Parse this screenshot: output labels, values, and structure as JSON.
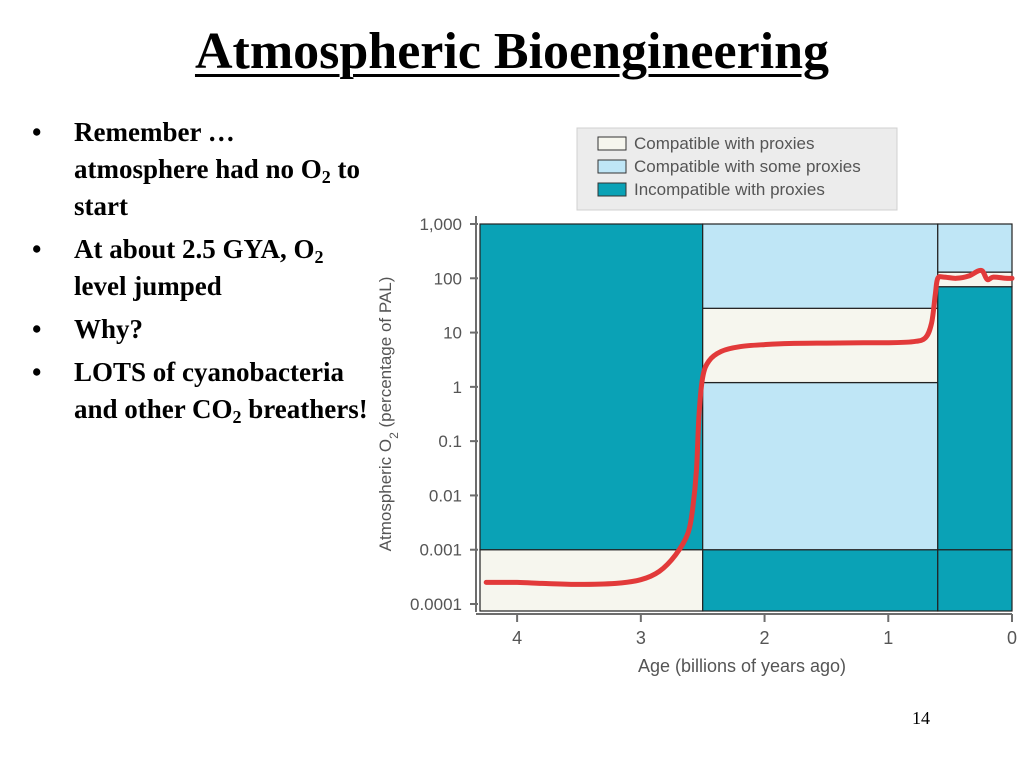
{
  "slide": {
    "title": "Atmospheric Bioengineering",
    "page_number": "14"
  },
  "bullets": [
    {
      "parts": [
        {
          "t": "Remember … atmosphere had no O"
        },
        {
          "t": "2",
          "sub": true
        },
        {
          "t": " to start"
        }
      ]
    },
    {
      "parts": [
        {
          "t": "At about 2.5 GYA, O"
        },
        {
          "t": "2",
          "sub": true
        },
        {
          "t": " level jumped"
        }
      ]
    },
    {
      "parts": [
        {
          "t": "Why?"
        }
      ]
    },
    {
      "parts": [
        {
          "t": "LOTS of cyanobacteria and other CO"
        },
        {
          "t": "2",
          "sub": true
        },
        {
          "t": " breathers!"
        }
      ]
    }
  ],
  "bullet_symbol": "•",
  "colors": {
    "compatible": "#f6f6ee",
    "some": "#bfe6f6",
    "incompatible": "#0aa2b6",
    "curve": "#e23a3a",
    "axis": "#6d6d6d",
    "border": "#222222"
  },
  "chart_data": {
    "type": "area",
    "xlabel": "Age (billions of years ago)",
    "ylabel": "Atmospheric O",
    "ylabel_sub": "2",
    "ylabel_suffix": " (percentage of PAL)",
    "x_reversed": true,
    "y_scale": "log",
    "xlim": [
      4.3,
      0
    ],
    "ylim": [
      0.0001,
      1000
    ],
    "x_ticks": [
      {
        "value": 4,
        "label": "4"
      },
      {
        "value": 3,
        "label": "3"
      },
      {
        "value": 2,
        "label": "2"
      },
      {
        "value": 1,
        "label": "1"
      },
      {
        "value": 0,
        "label": "0"
      }
    ],
    "y_ticks": [
      {
        "value": 1000,
        "label": "1,000"
      },
      {
        "value": 100,
        "label": "100"
      },
      {
        "value": 10,
        "label": "10"
      },
      {
        "value": 1,
        "label": "1"
      },
      {
        "value": 0.1,
        "label": "0.1"
      },
      {
        "value": 0.01,
        "label": "0.01"
      },
      {
        "value": 0.001,
        "label": "0.001"
      },
      {
        "value": 0.0001,
        "label": "0.0001"
      }
    ],
    "legend": [
      {
        "key": "compatible",
        "label": "Compatible with proxies"
      },
      {
        "key": "some",
        "label": "Compatible with some proxies"
      },
      {
        "key": "incompatible",
        "label": "Incompatible with proxies"
      }
    ],
    "legend_position": "top",
    "regions": [
      {
        "cat": "compatible",
        "x": [
          4.3,
          2.5
        ],
        "y": [
          7e-05,
          0.001
        ]
      },
      {
        "cat": "incompatible",
        "x": [
          4.3,
          2.5
        ],
        "y": [
          0.001,
          1000
        ]
      },
      {
        "cat": "incompatible",
        "x": [
          2.5,
          0.6
        ],
        "y": [
          7e-05,
          0.001
        ]
      },
      {
        "cat": "some",
        "x": [
          2.5,
          0.6
        ],
        "y": [
          0.001,
          1.2
        ]
      },
      {
        "cat": "compatible",
        "x": [
          2.5,
          0.6
        ],
        "y": [
          1.2,
          28
        ]
      },
      {
        "cat": "some",
        "x": [
          2.5,
          0.6
        ],
        "y": [
          28,
          1000
        ]
      },
      {
        "cat": "incompatible",
        "x": [
          0.6,
          0
        ],
        "y": [
          7e-05,
          0.001
        ]
      },
      {
        "cat": "incompatible",
        "x": [
          0.6,
          0
        ],
        "y": [
          0.001,
          70
        ]
      },
      {
        "cat": "compatible",
        "x": [
          0.6,
          0
        ],
        "y": [
          70,
          130
        ]
      },
      {
        "cat": "some",
        "x": [
          0.6,
          0
        ],
        "y": [
          130,
          1000
        ]
      }
    ],
    "curve": [
      [
        4.25,
        0.00025
      ],
      [
        4.0,
        0.00025
      ],
      [
        3.8,
        0.00024
      ],
      [
        3.5,
        0.00023
      ],
      [
        3.2,
        0.00024
      ],
      [
        3.0,
        0.00028
      ],
      [
        2.85,
        0.0004
      ],
      [
        2.72,
        0.0008
      ],
      [
        2.62,
        0.002
      ],
      [
        2.58,
        0.006
      ],
      [
        2.55,
        0.03
      ],
      [
        2.53,
        0.3
      ],
      [
        2.5,
        1.5
      ],
      [
        2.45,
        3
      ],
      [
        2.35,
        4.5
      ],
      [
        2.2,
        5.5
      ],
      [
        2.0,
        6
      ],
      [
        1.8,
        6.3
      ],
      [
        1.5,
        6.4
      ],
      [
        1.2,
        6.5
      ],
      [
        1.0,
        6.5
      ],
      [
        0.8,
        6.8
      ],
      [
        0.7,
        8
      ],
      [
        0.65,
        15
      ],
      [
        0.62,
        50
      ],
      [
        0.6,
        100
      ],
      [
        0.55,
        105
      ],
      [
        0.45,
        100
      ],
      [
        0.35,
        110
      ],
      [
        0.25,
        140
      ],
      [
        0.2,
        95
      ],
      [
        0.15,
        105
      ],
      [
        0.05,
        100
      ],
      [
        0.0,
        100
      ]
    ]
  }
}
